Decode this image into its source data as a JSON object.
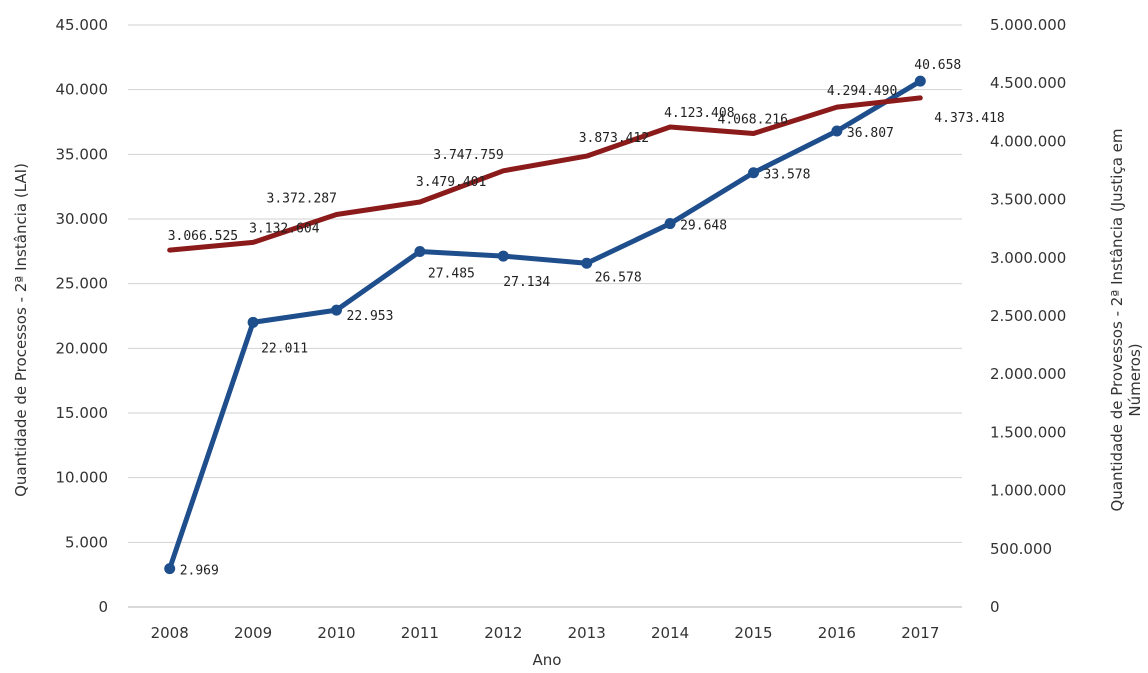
{
  "chart_data": {
    "type": "line",
    "categories": [
      "2008",
      "2009",
      "2010",
      "2011",
      "2012",
      "2013",
      "2014",
      "2015",
      "2016",
      "2017"
    ],
    "xlabel": "Ano",
    "ylabel_left": "Quantidade de Processos - 2ª Instância (LAI)",
    "ylabel_right": [
      "Quantidade de Provessos - 2ª Instância (Justiça em",
      "Números)"
    ],
    "ylim_left": [
      0,
      45000
    ],
    "ylim_right": [
      0,
      5000000
    ],
    "yticks_left": [
      "0",
      "5.000",
      "10.000",
      "15.000",
      "20.000",
      "25.000",
      "30.000",
      "35.000",
      "40.000",
      "45.000"
    ],
    "yticks_right": [
      "0",
      "500.000",
      "1.000.000",
      "1.500.000",
      "2.000.000",
      "2.500.000",
      "3.000.000",
      "3.500.000",
      "4.000.000",
      "4.500.000",
      "5.000.000"
    ],
    "grid": true,
    "legend": "none",
    "series": [
      {
        "axis": "left",
        "color": "#1f4e8c",
        "markers": true,
        "values": [
          2969,
          22011,
          22953,
          27485,
          27134,
          26578,
          29648,
          33578,
          36807,
          40658
        ],
        "labels": [
          "2.969",
          "22.011",
          "22.953",
          "27.485",
          "27.134",
          "26.578",
          "29.648",
          "33.578",
          "36.807",
          "40.658"
        ]
      },
      {
        "axis": "right",
        "color": "#8b1a1a",
        "markers": false,
        "values": [
          3066525,
          3132604,
          3372287,
          3479401,
          3747759,
          3873412,
          4123408,
          4068216,
          4294490,
          4373418
        ],
        "labels": [
          "3.066.525",
          "3.132.604",
          "3.372.287",
          "3.479.401",
          "3.747.759",
          "3.873.412",
          "4.123.408",
          "4.068.216",
          "4.294.490",
          "4.373.418"
        ]
      }
    ]
  }
}
